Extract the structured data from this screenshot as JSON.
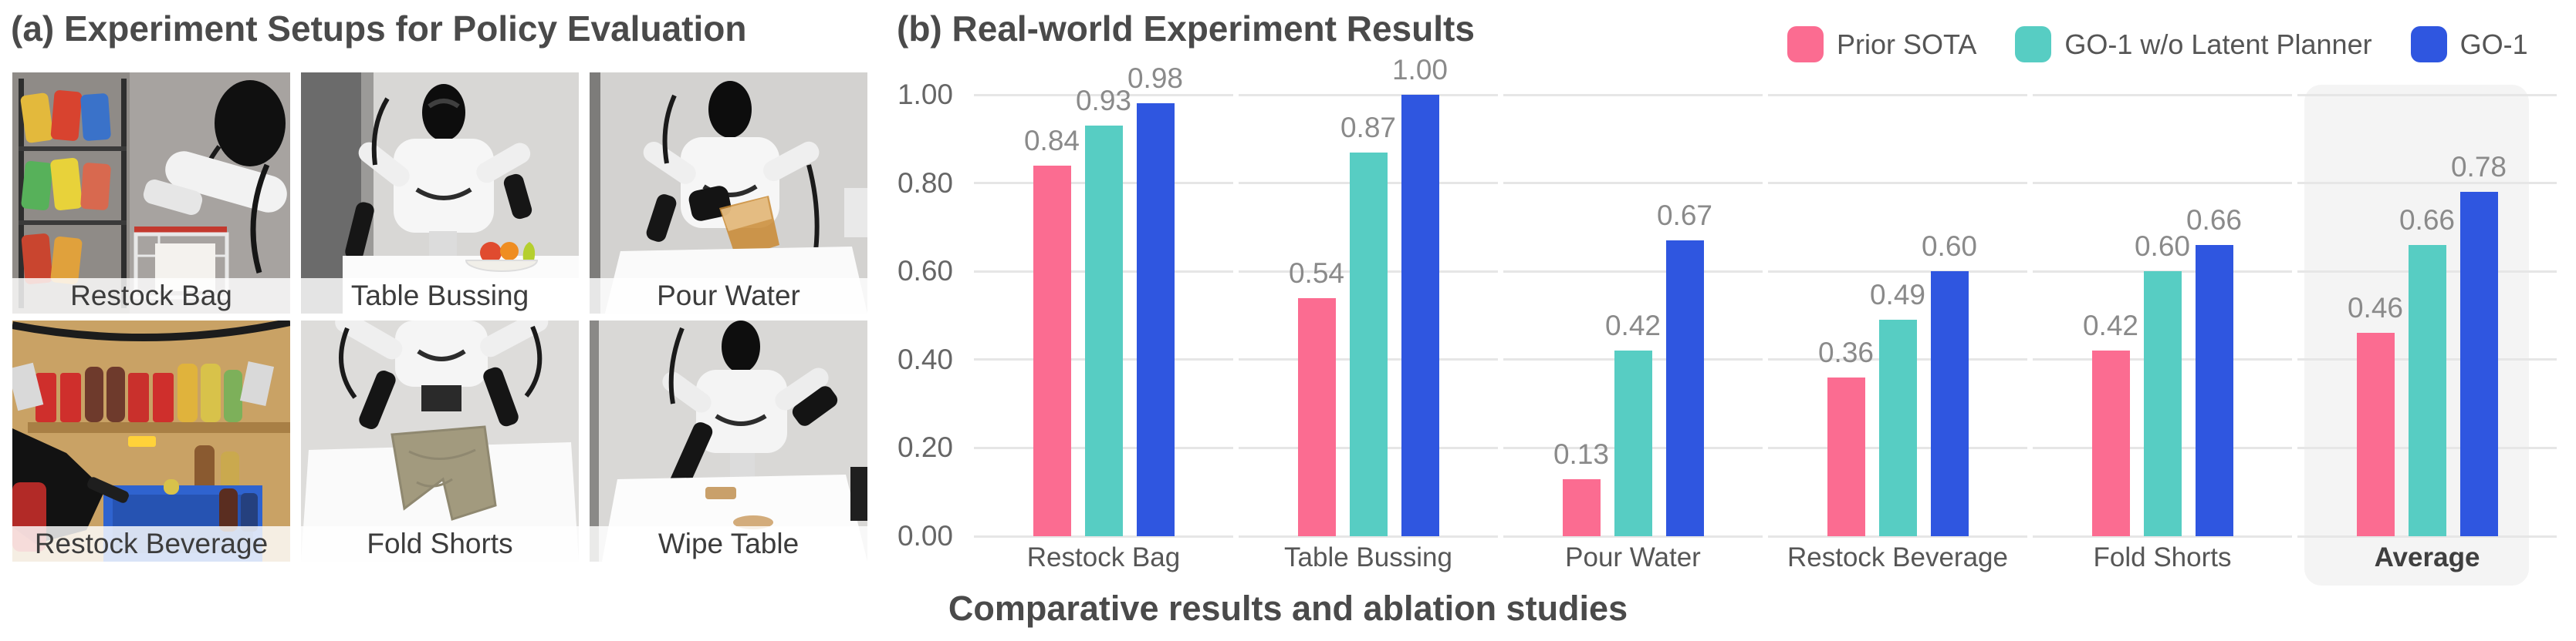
{
  "figure": {
    "panel_a": {
      "title": "(a) Experiment Setups for Policy Evaluation",
      "setups": [
        {
          "label": "Restock Bag"
        },
        {
          "label": "Table Bussing"
        },
        {
          "label": "Pour Water"
        },
        {
          "label": "Restock Beverage"
        },
        {
          "label": "Fold Shorts"
        },
        {
          "label": "Wipe Table"
        }
      ]
    },
    "panel_b": {
      "title": "(b) Real-world Experiment Results",
      "caption": "Comparative results and ablation studies",
      "legend": [
        {
          "label": "Prior SOTA",
          "color": "#FB6C91"
        },
        {
          "label": "GO-1 w/o Latent Planner",
          "color": "#57CDC3"
        },
        {
          "label": "GO-1",
          "color": "#2F56E0"
        }
      ]
    }
  },
  "chart_data": {
    "type": "bar",
    "title": "(b) Real-world Experiment Results",
    "categories": [
      "Restock Bag",
      "Table Bussing",
      "Pour Water",
      "Restock Beverage",
      "Fold Shorts",
      "Average"
    ],
    "series": [
      {
        "name": "Prior SOTA",
        "color": "#FB6C91",
        "values": [
          0.84,
          0.54,
          0.13,
          0.36,
          0.42,
          0.46
        ]
      },
      {
        "name": "GO-1 w/o Latent Planner",
        "color": "#57CDC3",
        "values": [
          0.93,
          0.87,
          0.42,
          0.49,
          0.6,
          0.66
        ]
      },
      {
        "name": "GO-1",
        "color": "#2F56E0",
        "values": [
          0.98,
          1.0,
          0.67,
          0.6,
          0.66,
          0.78
        ]
      }
    ],
    "value_labels": [
      "0.84",
      "0.93",
      "0.98",
      "0.54",
      "0.87",
      "1.00",
      "0.13",
      "0.42",
      "0.67",
      "0.36",
      "0.49",
      "0.60",
      "0.42",
      "0.60",
      "0.66",
      "0.46",
      "0.66",
      "0.78"
    ],
    "xlabel": "",
    "ylabel": "",
    "ylim": [
      0,
      1.0
    ],
    "y_ticks": [
      {
        "v": 0.0,
        "label": "0.00"
      },
      {
        "v": 0.2,
        "label": "0.20"
      },
      {
        "v": 0.4,
        "label": "0.40"
      },
      {
        "v": 0.6,
        "label": "0.60"
      },
      {
        "v": 0.8,
        "label": "0.80"
      },
      {
        "v": 1.0,
        "label": "1.00"
      }
    ],
    "grid": true,
    "legend_position": "top-right",
    "highlight_category": "Average",
    "grid_color": "#e6e6e6",
    "highlight_color": "#f4f4f4"
  }
}
